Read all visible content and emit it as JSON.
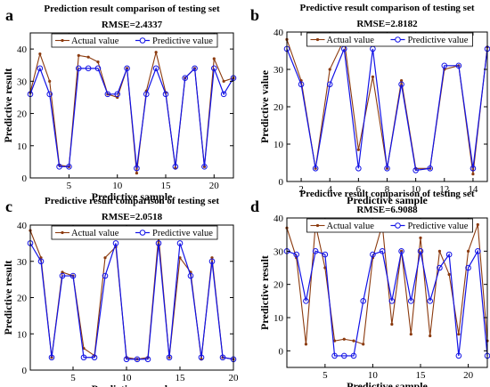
{
  "colors": {
    "actual": "#8B3A0E",
    "predicted": "#1212E6",
    "axes": "#000000",
    "legend_border": "#000000"
  },
  "chart_data": [
    {
      "panel_label": "a",
      "type": "line",
      "title": "Prediction result comparison of testing set",
      "subtitle": "RMSE=2.4337",
      "xlabel": "Predictive sample",
      "ylabel": "Predictive result",
      "xlim": [
        1,
        22
      ],
      "ylim": [
        0,
        45
      ],
      "xticks": [
        5,
        10,
        15,
        20
      ],
      "yticks": [
        0,
        10,
        20,
        30,
        40
      ],
      "legend_position": "top-center",
      "x": [
        1,
        2,
        3,
        4,
        5,
        6,
        7,
        8,
        9,
        10,
        11,
        12,
        13,
        14,
        15,
        16,
        17,
        18,
        19,
        20,
        21,
        22
      ],
      "series": [
        {
          "name": "Actual value",
          "values": [
            26.5,
            38.5,
            30,
            4,
            3.5,
            38,
            37.5,
            36,
            26,
            25,
            34,
            1.5,
            27,
            39,
            26.5,
            3,
            31,
            34,
            3.5,
            37,
            30,
            31
          ]
        },
        {
          "name": "Predictive value",
          "values": [
            26,
            34,
            26,
            3.5,
            3.5,
            34,
            34,
            34,
            26,
            26,
            34,
            3,
            26,
            34,
            26,
            3.5,
            31,
            34,
            3.5,
            34,
            26,
            31
          ]
        }
      ]
    },
    {
      "panel_label": "b",
      "type": "line",
      "title": "Predictive result comparison of testing set",
      "subtitle": "RMSE=2.8182",
      "xlabel": "Predictive sample",
      "ylabel": "Predictive value",
      "xlim": [
        1,
        15
      ],
      "ylim": [
        0,
        40
      ],
      "xticks": [
        2,
        4,
        6,
        8,
        10,
        12,
        14
      ],
      "yticks": [
        0,
        10,
        20,
        30,
        40
      ],
      "legend_position": "top-center",
      "x": [
        1,
        2,
        3,
        4,
        5,
        6,
        7,
        8,
        9,
        10,
        11,
        12,
        13,
        14,
        15
      ],
      "series": [
        {
          "name": "Actual value",
          "values": [
            38,
            27,
            3.5,
            30,
            38,
            8.5,
            28,
            3.5,
            27,
            3.5,
            3.5,
            30,
            31,
            2,
            36
          ]
        },
        {
          "name": "Predictive value",
          "values": [
            35.5,
            26,
            3.5,
            26,
            35.5,
            3.5,
            35.5,
            3.5,
            26,
            3,
            3.5,
            31,
            31,
            3.5,
            35.5
          ]
        }
      ]
    },
    {
      "panel_label": "c",
      "type": "line",
      "title": "Predictive result comparison of testing set",
      "subtitle": "RMSE=2.0518",
      "xlabel": "Predictive sample",
      "ylabel": "Predictive result",
      "xlim": [
        1,
        20
      ],
      "ylim": [
        0,
        40
      ],
      "xticks": [
        5,
        10,
        15,
        20
      ],
      "yticks": [
        0,
        10,
        20,
        30,
        40
      ],
      "legend_position": "top-center",
      "x": [
        1,
        2,
        3,
        4,
        5,
        6,
        7,
        8,
        9,
        10,
        11,
        12,
        13,
        14,
        15,
        16,
        17,
        18,
        19,
        20
      ],
      "series": [
        {
          "name": "Actual value",
          "values": [
            38.5,
            31,
            3.5,
            27,
            26,
            6,
            4,
            31,
            34,
            3.5,
            3,
            3.5,
            37,
            3.5,
            31,
            27,
            3,
            31,
            3.5,
            3
          ]
        },
        {
          "name": "Predictive value",
          "values": [
            35,
            30,
            3.5,
            26,
            26,
            3.5,
            3.5,
            26,
            35,
            3,
            3,
            3,
            35,
            3.5,
            35,
            26,
            3.5,
            30,
            3.5,
            3
          ]
        }
      ]
    },
    {
      "panel_label": "d",
      "type": "line",
      "title": "Predictive result comparison of testing set",
      "subtitle": "RMSE=6.9088",
      "xlabel": "Predictive sample",
      "ylabel": "Predictive result",
      "xlim": [
        1,
        22
      ],
      "ylim": [
        -5,
        40
      ],
      "xticks": [
        5,
        10,
        15,
        20
      ],
      "yticks": [
        0,
        10,
        20,
        30,
        40
      ],
      "legend_position": "top-center",
      "x": [
        1,
        2,
        3,
        4,
        5,
        6,
        7,
        8,
        9,
        10,
        11,
        12,
        13,
        14,
        15,
        16,
        17,
        18,
        19,
        20,
        21,
        22
      ],
      "series": [
        {
          "name": "Actual value",
          "values": [
            37,
            28,
            2,
            38,
            25,
            3,
            3.5,
            3,
            2,
            28,
            38,
            8,
            30,
            5,
            34,
            4.5,
            30,
            23,
            5,
            30,
            38,
            3
          ]
        },
        {
          "name": "Predictive value",
          "values": [
            30,
            29,
            15,
            30,
            29,
            -1.5,
            -1.5,
            -1.5,
            15,
            29,
            30,
            15,
            30,
            15,
            30,
            15,
            25,
            29,
            -1.5,
            25,
            30,
            -1.5
          ]
        }
      ]
    }
  ]
}
